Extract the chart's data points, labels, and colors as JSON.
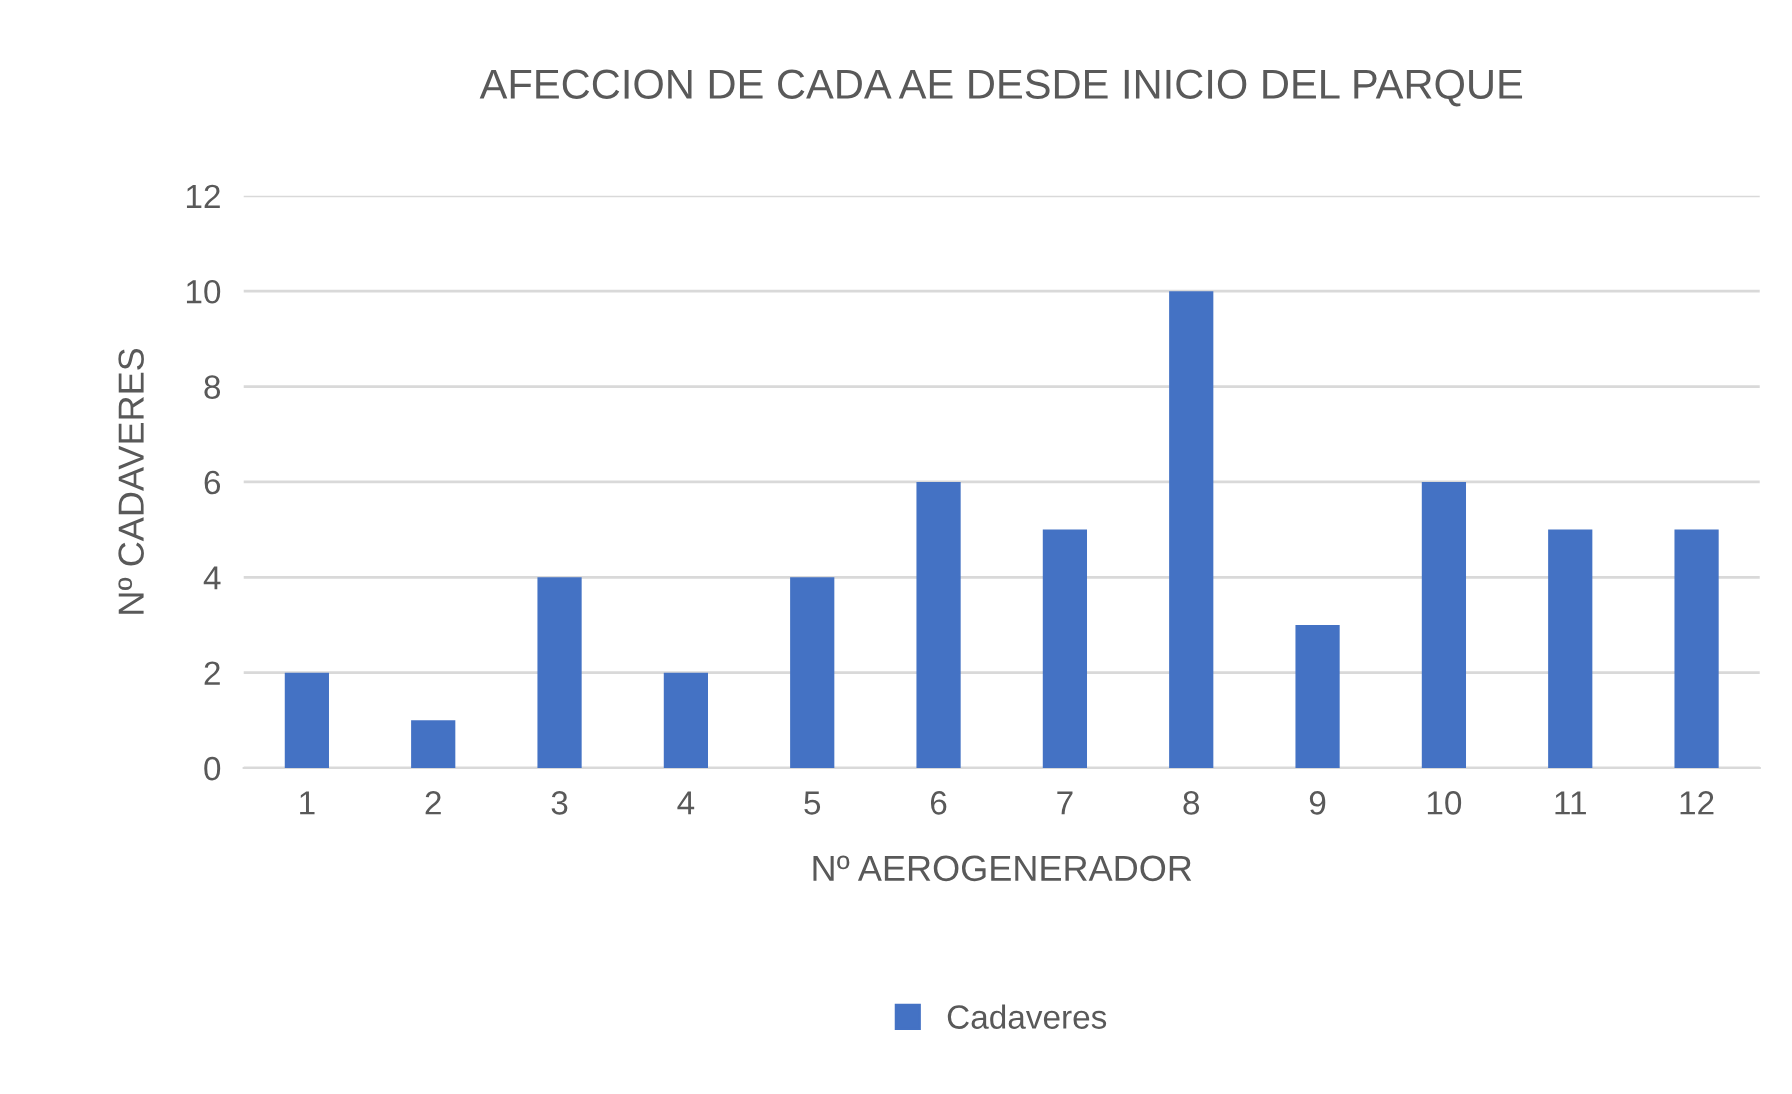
{
  "chart_data": {
    "type": "bar",
    "title": "AFECCION DE CADA AE DESDE INICIO DEL PARQUE",
    "xlabel": "Nº AEROGENERADOR",
    "ylabel": "Nº CADAVERES",
    "categories": [
      "1",
      "2",
      "3",
      "4",
      "5",
      "6",
      "7",
      "8",
      "9",
      "10",
      "11",
      "12"
    ],
    "series": [
      {
        "name": "Cadaveres",
        "color": "#4472c4",
        "values": [
          2,
          1,
          4,
          2,
          4,
          6,
          5,
          10,
          3,
          6,
          5,
          5
        ]
      }
    ],
    "ylim": [
      0,
      12
    ],
    "yticks": [
      0,
      2,
      4,
      6,
      8,
      10,
      12
    ],
    "grid": "y",
    "legend": "bottom"
  }
}
